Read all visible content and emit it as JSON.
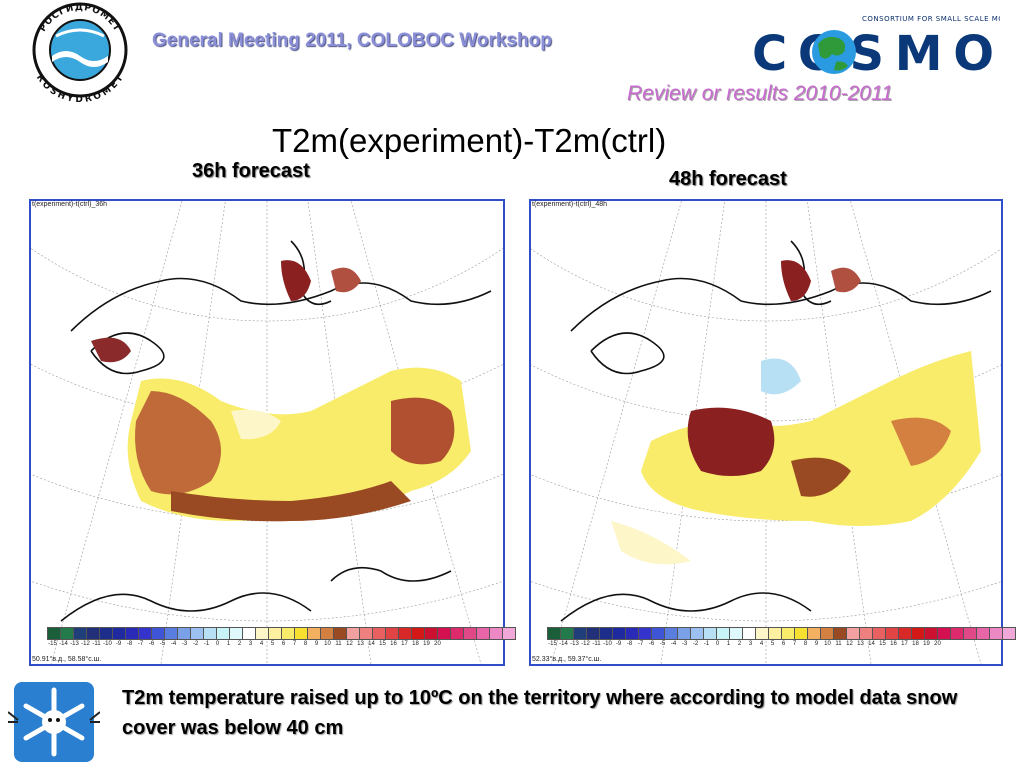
{
  "header": {
    "logo_left_top_text": "РОСГИДРОМЕТ",
    "logo_left_bottom_text": "ROSHYDROMET",
    "meeting": "General Meeting 2011, COLOBOC Workshop",
    "cosmo_tagline": "CONSORTIUM FOR SMALL SCALE MODELLING",
    "cosmo_word": "COSMO",
    "review": "Review or results 2010-2011"
  },
  "title": "T2m(experiment)-T2m(ctrl)",
  "panels": [
    {
      "forecast_label": "36h forecast",
      "map_title": "t(experiment)-t(ctrl)_36h",
      "coords": "50.91°в.д., 58.58°с.ш."
    },
    {
      "forecast_label": "48h forecast",
      "map_title": "t(experiment)-t(ctrl)_48h",
      "coords": "52.33°в.д., 59.37°с.ш."
    }
  ],
  "colorbar": {
    "labels": [
      "-15",
      "-14",
      "-13",
      "-12",
      "-11",
      "-10",
      "-9",
      "-8",
      "-7",
      "-6",
      "-5",
      "-4",
      "-3",
      "-2",
      "-1",
      "0",
      "1",
      "2",
      "3",
      "4",
      "5",
      "6",
      "7",
      "8",
      "9",
      "10",
      "11",
      "12",
      "13",
      "14",
      "15",
      "16",
      "17",
      "18",
      "19",
      "20"
    ],
    "colors": [
      "#1a5e3a",
      "#237a4a",
      "#1f3e7a",
      "#22307a",
      "#1c2d8a",
      "#1f2aa0",
      "#2a2ab8",
      "#3434cc",
      "#3e55d8",
      "#5a7de0",
      "#7aa0e8",
      "#9cc0f0",
      "#b7e0f4",
      "#c8f4f8",
      "#dff8fc",
      "#ffffff",
      "#fdf6c8",
      "#fdf0a0",
      "#f8ec6a",
      "#f8e030",
      "#f2b060",
      "#d48040",
      "#9a4a22",
      "#f2a0a0",
      "#ee8080",
      "#e86060",
      "#e04444",
      "#d82828",
      "#d41818",
      "#cc1030",
      "#d41050",
      "#dc2a6c",
      "#e04888",
      "#e866a8",
      "#ec88c4",
      "#f0a8d8"
    ]
  },
  "caption": "T2m temperature raised up to 10ºC on the territory where according to model data snow cover was below 40 cm"
}
